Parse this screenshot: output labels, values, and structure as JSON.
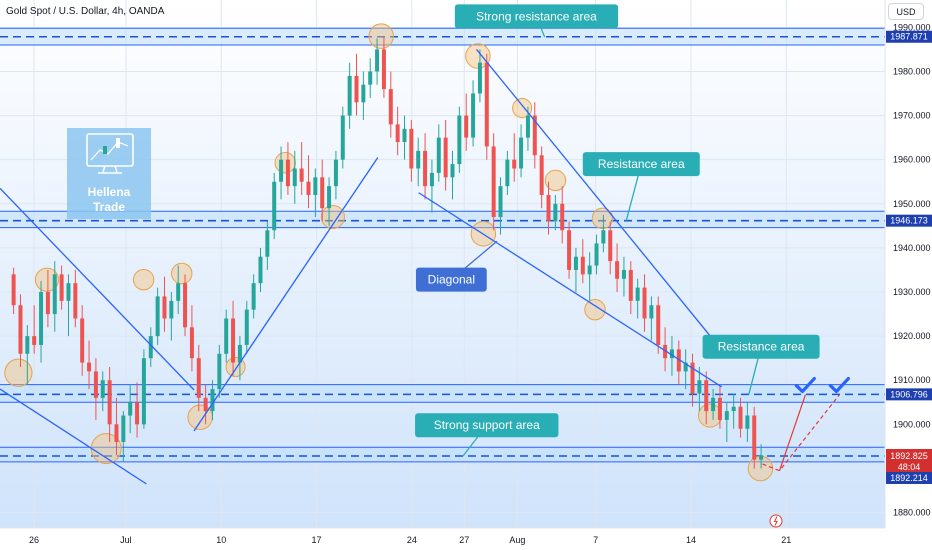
{
  "header": {
    "symbol_title": "Gold Spot / U.S. Dollar, 4h, OANDA",
    "currency": "USD"
  },
  "colors": {
    "up": "#26a69a",
    "down": "#ef5350",
    "zone_band": "#bbdefb",
    "dashed_level": "#1e4fd8",
    "trendline": "#2962ff",
    "callout_teal": "#29aeb5",
    "callout_blue": "#3f6fd4",
    "circle_fill": "#f5c07a",
    "forecast": "#e53935",
    "check": "#2962ff",
    "last_price_tag": "#d32f2f",
    "level_tag": "#1e3fb0"
  },
  "logo": {
    "line1": "Hellena",
    "line2": "Trade"
  },
  "chart_data": {
    "type": "candlestick",
    "title": "Gold Spot / U.S. Dollar, 4h, OANDA",
    "currency": "USD",
    "y_ticks": [
      1880,
      1890,
      1900,
      1910,
      1920,
      1930,
      1940,
      1950,
      1960,
      1970,
      1980,
      1990
    ],
    "y_tick_labels": [
      "1880.000",
      "1890.000",
      "1900.000",
      "1910.000",
      "1920.000",
      "1930.000",
      "1940.000",
      "1950.000",
      "1960.000",
      "1970.000",
      "1980.000",
      "1990.000"
    ],
    "ylim": [
      1876.5,
      1996.2
    ],
    "xlim": [
      0,
      130
    ],
    "x_ticks": [
      {
        "label": "26",
        "x": 5
      },
      {
        "label": "Jul",
        "x": 18.5
      },
      {
        "label": "10",
        "x": 32.5
      },
      {
        "label": "17",
        "x": 46.5
      },
      {
        "label": "24",
        "x": 60.5
      },
      {
        "label": "27",
        "x": 68.2
      },
      {
        "label": "Aug",
        "x": 76
      },
      {
        "label": "7",
        "x": 87.5
      },
      {
        "label": "14",
        "x": 101.5
      },
      {
        "label": "21",
        "x": 115.5
      }
    ],
    "key_levels": [
      {
        "name": "Strong resistance area",
        "price": 1987.871,
        "label": "1987.871",
        "zone": [
          1986.0,
          1989.8
        ]
      },
      {
        "name": "Resistance area",
        "price": 1946.173,
        "label": "1946.173",
        "zone": [
          1944.6,
          1948.3
        ]
      },
      {
        "name": "Resistance area (lower)",
        "price": 1906.796,
        "label": "1906.796",
        "zone": [
          1905.0,
          1909.0
        ]
      },
      {
        "name": "Strong support area",
        "price": 1892.825,
        "label": "1892.825",
        "zone": [
          1891.5,
          1894.8
        ]
      }
    ],
    "last_price": {
      "value": "1892.825",
      "countdown": "48:04"
    },
    "lower_tag": "1892.214",
    "callouts": [
      {
        "text": "Strong resistance area",
        "x": 78.8,
        "y": 1992.5,
        "pointer": [
          80,
          1987.8
        ],
        "style": "teal"
      },
      {
        "text": "Resistance area",
        "x": 94.2,
        "y": 1959.0,
        "pointer": [
          92,
          1946.2
        ],
        "style": "teal"
      },
      {
        "text": "Diagonal",
        "x": 66.3,
        "y": 1932.8,
        "pointer": [
          73,
          1941.5
        ],
        "style": "blue"
      },
      {
        "text": "Resistance area",
        "x": 111.8,
        "y": 1917.6,
        "pointer": [
          110,
          1906.8
        ],
        "style": "teal"
      },
      {
        "text": "Strong support area",
        "x": 71.5,
        "y": 1899.8,
        "pointer": [
          68,
          1892.8
        ],
        "style": "teal"
      }
    ],
    "trendlines": [
      {
        "from": [
          0,
          1953.5
        ],
        "to": [
          28.5,
          1907.8
        ]
      },
      {
        "from": [
          0,
          1908.0
        ],
        "to": [
          21.5,
          1886.5
        ]
      },
      {
        "from": [
          28.5,
          1898.5
        ],
        "to": [
          55.5,
          1960.5
        ]
      },
      {
        "from": [
          61.5,
          1952.5
        ],
        "to": [
          106,
          1908.5
        ]
      },
      {
        "from": [
          70,
          1985.0
        ],
        "to": [
          105.5,
          1917.8
        ]
      }
    ],
    "circles": [
      {
        "x": 2.7,
        "y": 1911.7,
        "r": 2.0
      },
      {
        "x": 6.9,
        "y": 1932.8,
        "r": 1.7
      },
      {
        "x": 15.6,
        "y": 1894.5,
        "r": 2.2
      },
      {
        "x": 21.1,
        "y": 1932.8,
        "r": 1.5
      },
      {
        "x": 26.7,
        "y": 1934.2,
        "r": 1.5
      },
      {
        "x": 29.4,
        "y": 1901.6,
        "r": 1.8
      },
      {
        "x": 34.6,
        "y": 1913.0,
        "r": 1.4
      },
      {
        "x": 41.9,
        "y": 1959.3,
        "r": 1.5
      },
      {
        "x": 48.9,
        "y": 1947.0,
        "r": 1.7
      },
      {
        "x": 56.0,
        "y": 1988.0,
        "r": 1.8
      },
      {
        "x": 70.2,
        "y": 1983.5,
        "r": 1.8
      },
      {
        "x": 71.0,
        "y": 1943.2,
        "r": 1.8
      },
      {
        "x": 76.7,
        "y": 1971.7,
        "r": 1.4
      },
      {
        "x": 81.6,
        "y": 1955.3,
        "r": 1.5
      },
      {
        "x": 87.4,
        "y": 1926.0,
        "r": 1.5
      },
      {
        "x": 88.5,
        "y": 1946.7,
        "r": 1.5
      },
      {
        "x": 104.3,
        "y": 1902.0,
        "r": 1.7
      },
      {
        "x": 111.7,
        "y": 1890.0,
        "r": 1.8
      }
    ],
    "forecast_path": [
      [
        112,
        1891.0
      ],
      [
        114.5,
        1889.5
      ],
      [
        118.3,
        1906.7
      ],
      [
        114.5,
        1889.5
      ],
      [
        123.3,
        1906.7
      ]
    ],
    "checkmarks": [
      {
        "x": 118.3,
        "y": 1908.8
      },
      {
        "x": 123.3,
        "y": 1908.8
      }
    ],
    "candles": [
      [
        1934.0,
        1935.5,
        1925.0,
        1927.0
      ],
      [
        1927.0,
        1929.5,
        1913.0,
        1916.0
      ],
      [
        1916.0,
        1922.5,
        1909.0,
        1920.0
      ],
      [
        1920.0,
        1927.0,
        1916.0,
        1918.0
      ],
      [
        1918.0,
        1932.5,
        1914.0,
        1930.0
      ],
      [
        1930.0,
        1935.0,
        1922.0,
        1925.0
      ],
      [
        1925.0,
        1937.0,
        1921.0,
        1934.0
      ],
      [
        1934.0,
        1936.0,
        1926.0,
        1928.0
      ],
      [
        1928.0,
        1934.0,
        1920.0,
        1932.0
      ],
      [
        1932.0,
        1935.0,
        1922.0,
        1924.0
      ],
      [
        1924.0,
        1927.0,
        1911.0,
        1914.0
      ],
      [
        1914.0,
        1919.0,
        1908.0,
        1912.0
      ],
      [
        1912.0,
        1915.0,
        1901.0,
        1906.0
      ],
      [
        1906.0,
        1912.0,
        1903.0,
        1910.0
      ],
      [
        1910.0,
        1913.0,
        1896.0,
        1900.0
      ],
      [
        1900.0,
        1906.0,
        1893.0,
        1896.0
      ],
      [
        1896.0,
        1903.0,
        1891.5,
        1902.0
      ],
      [
        1902.0,
        1909.0,
        1898.0,
        1905.0
      ],
      [
        1905.0,
        1909.5,
        1897.0,
        1900.0
      ],
      [
        1900.0,
        1917.0,
        1899.0,
        1915.0
      ],
      [
        1915.0,
        1922.0,
        1913.0,
        1920.0
      ],
      [
        1920.0,
        1931.0,
        1918.0,
        1929.0
      ],
      [
        1929.0,
        1933.5,
        1921.0,
        1924.0
      ],
      [
        1924.0,
        1930.0,
        1919.0,
        1928.0
      ],
      [
        1928.0,
        1936.0,
        1925.0,
        1932.0
      ],
      [
        1932.0,
        1934.0,
        1920.0,
        1922.0
      ],
      [
        1922.0,
        1927.0,
        1912.0,
        1915.0
      ],
      [
        1915.0,
        1918.0,
        1903.0,
        1906.0
      ],
      [
        1906.0,
        1909.0,
        1900.0,
        1903.0
      ],
      [
        1903.0,
        1910.0,
        1901.0,
        1908.0
      ],
      [
        1908.0,
        1918.0,
        1906.0,
        1916.0
      ],
      [
        1916.0,
        1926.0,
        1914.0,
        1924.0
      ],
      [
        1924.0,
        1928.0,
        1911.0,
        1914.0
      ],
      [
        1914.0,
        1920.0,
        1910.0,
        1918.0
      ],
      [
        1918.0,
        1928.0,
        1916.0,
        1926.0
      ],
      [
        1926.0,
        1934.0,
        1924.0,
        1932.0
      ],
      [
        1932.0,
        1940.0,
        1930.0,
        1938.0
      ],
      [
        1938.0,
        1946.0,
        1935.0,
        1944.0
      ],
      [
        1944.0,
        1957.0,
        1942.0,
        1955.0
      ],
      [
        1955.0,
        1963.0,
        1951.0,
        1960.0
      ],
      [
        1960.0,
        1964.0,
        1952.0,
        1954.0
      ],
      [
        1954.0,
        1962.0,
        1950.0,
        1958.0
      ],
      [
        1958.0,
        1964.0,
        1952.0,
        1955.0
      ],
      [
        1955.0,
        1961.0,
        1949.0,
        1952.0
      ],
      [
        1952.0,
        1958.0,
        1947.0,
        1956.0
      ],
      [
        1956.0,
        1960.0,
        1946.0,
        1949.0
      ],
      [
        1949.0,
        1956.0,
        1945.0,
        1954.0
      ],
      [
        1954.0,
        1962.0,
        1951.0,
        1960.0
      ],
      [
        1960.0,
        1972.0,
        1958.0,
        1970.0
      ],
      [
        1970.0,
        1982.0,
        1967.0,
        1979.0
      ],
      [
        1979.0,
        1984.0,
        1970.0,
        1973.0
      ],
      [
        1973.0,
        1980.0,
        1969.0,
        1977.0
      ],
      [
        1977.0,
        1983.0,
        1974.0,
        1980.0
      ],
      [
        1980.0,
        1987.5,
        1977.0,
        1985.0
      ],
      [
        1985.0,
        1988.0,
        1974.0,
        1976.0
      ],
      [
        1976.0,
        1980.0,
        1965.0,
        1968.0
      ],
      [
        1968.0,
        1972.0,
        1961.0,
        1964.0
      ],
      [
        1964.0,
        1970.0,
        1960.0,
        1967.0
      ],
      [
        1967.0,
        1969.0,
        1955.0,
        1958.0
      ],
      [
        1958.0,
        1965.0,
        1954.0,
        1962.0
      ],
      [
        1962.0,
        1966.0,
        1951.0,
        1954.0
      ],
      [
        1954.0,
        1960.0,
        1948.0,
        1957.0
      ],
      [
        1957.0,
        1968.0,
        1955.0,
        1965.0
      ],
      [
        1965.0,
        1969.0,
        1953.0,
        1956.0
      ],
      [
        1956.0,
        1962.0,
        1951.0,
        1959.0
      ],
      [
        1959.0,
        1972.0,
        1957.0,
        1970.0
      ],
      [
        1970.0,
        1975.0,
        1962.0,
        1965.0
      ],
      [
        1965.0,
        1978.0,
        1963.0,
        1975.0
      ],
      [
        1975.0,
        1985.0,
        1973.0,
        1982.0
      ],
      [
        1982.0,
        1984.0,
        1960.0,
        1963.0
      ],
      [
        1963.0,
        1966.0,
        1944.0,
        1947.0
      ],
      [
        1947.0,
        1956.0,
        1943.0,
        1954.0
      ],
      [
        1954.0,
        1962.0,
        1952.0,
        1960.0
      ],
      [
        1960.0,
        1966.0,
        1955.0,
        1958.0
      ],
      [
        1958.0,
        1968.0,
        1956.0,
        1965.0
      ],
      [
        1965.0,
        1972.0,
        1962.0,
        1970.0
      ],
      [
        1970.0,
        1973.0,
        1958.0,
        1961.0
      ],
      [
        1961.0,
        1963.0,
        1949.0,
        1952.0
      ],
      [
        1952.0,
        1955.0,
        1943.0,
        1946.0
      ],
      [
        1946.0,
        1952.0,
        1944.0,
        1950.0
      ],
      [
        1950.0,
        1954.0,
        1941.0,
        1944.0
      ],
      [
        1944.0,
        1946.0,
        1933.0,
        1935.0
      ],
      [
        1935.0,
        1940.0,
        1930.0,
        1938.0
      ],
      [
        1938.0,
        1942.0,
        1932.0,
        1934.0
      ],
      [
        1934.0,
        1939.0,
        1928.0,
        1936.0
      ],
      [
        1936.0,
        1943.0,
        1934.0,
        1941.0
      ],
      [
        1941.0,
        1947.5,
        1939.0,
        1944.0
      ],
      [
        1944.0,
        1946.0,
        1934.0,
        1937.0
      ],
      [
        1937.0,
        1941.0,
        1930.0,
        1933.0
      ],
      [
        1933.0,
        1938.0,
        1929.0,
        1935.0
      ],
      [
        1935.0,
        1937.0,
        1925.0,
        1928.0
      ],
      [
        1928.0,
        1933.0,
        1924.0,
        1931.0
      ],
      [
        1931.0,
        1934.0,
        1921.0,
        1924.0
      ],
      [
        1924.0,
        1929.0,
        1919.0,
        1927.0
      ],
      [
        1927.0,
        1929.0,
        1916.0,
        1918.0
      ],
      [
        1918.0,
        1922.0,
        1912.0,
        1915.0
      ],
      [
        1915.0,
        1920.0,
        1911.0,
        1917.0
      ],
      [
        1917.0,
        1919.0,
        1909.0,
        1912.0
      ],
      [
        1912.0,
        1917.0,
        1908.0,
        1914.0
      ],
      [
        1914.0,
        1916.0,
        1904.0,
        1907.0
      ],
      [
        1907.0,
        1913.0,
        1903.0,
        1910.0
      ],
      [
        1910.0,
        1912.0,
        1900.0,
        1903.0
      ],
      [
        1903.0,
        1908.0,
        1901.0,
        1906.0
      ],
      [
        1906.0,
        1909.0,
        1899.0,
        1901.0
      ],
      [
        1901.0,
        1905.0,
        1896.0,
        1903.0
      ],
      [
        1903.0,
        1907.0,
        1899.0,
        1904.0
      ],
      [
        1904.0,
        1906.0,
        1897.0,
        1899.0
      ],
      [
        1899.0,
        1905.0,
        1896.0,
        1902.0
      ],
      [
        1902.0,
        1904.0,
        1890.0,
        1892.0
      ],
      [
        1892.0,
        1895.5,
        1890.0,
        1893.0
      ]
    ]
  }
}
